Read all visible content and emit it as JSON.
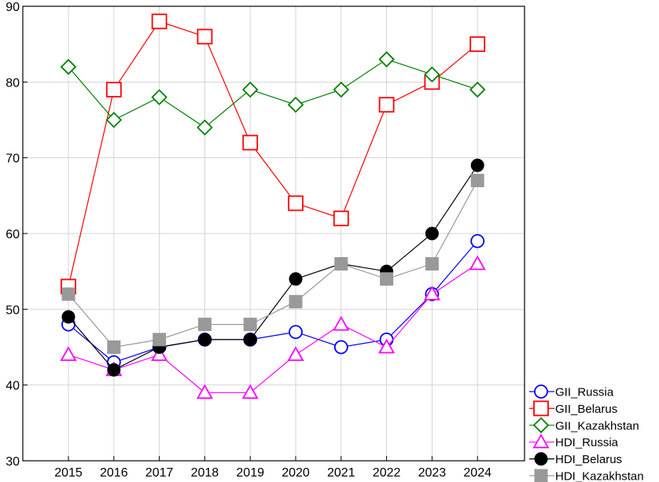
{
  "chart_data": {
    "type": "line",
    "title": "",
    "xlabel": "",
    "ylabel": "",
    "categories": [
      "2015",
      "2016",
      "2017",
      "2018",
      "2019",
      "2020",
      "2021",
      "2022",
      "2023",
      "2024"
    ],
    "ylim": [
      30,
      90
    ],
    "yticks": [
      30,
      40,
      50,
      60,
      70,
      80,
      90
    ],
    "grid": true,
    "legend_position": "bottom-right",
    "series": [
      {
        "name": "GII_Russia",
        "color": "#0000ff",
        "marker": "circle-open",
        "values": [
          48,
          43,
          45,
          46,
          46,
          47,
          45,
          46,
          52,
          59
        ]
      },
      {
        "name": "GII_Belarus",
        "color": "#ff0000",
        "marker": "square-open",
        "values": [
          53,
          79,
          88,
          86,
          72,
          64,
          62,
          77,
          80,
          85
        ]
      },
      {
        "name": "GII_Kazakhstan",
        "color": "#008000",
        "marker": "diamond-open",
        "values": [
          82,
          75,
          78,
          74,
          79,
          77,
          79,
          83,
          81,
          79
        ]
      },
      {
        "name": "HDI_Russia",
        "color": "#ff00ff",
        "marker": "triangle-open",
        "values": [
          44,
          42,
          44,
          39,
          39,
          44,
          48,
          45,
          52,
          56
        ]
      },
      {
        "name": "HDI_Belarus",
        "color": "#000000",
        "marker": "circle-filled",
        "values": [
          49,
          42,
          45,
          46,
          46,
          54,
          56,
          55,
          60,
          69
        ]
      },
      {
        "name": "HDI_Kazakhstan",
        "color": "#999999",
        "marker": "square-filled",
        "values": [
          52,
          45,
          46,
          48,
          48,
          51,
          56,
          54,
          56,
          67
        ]
      }
    ]
  }
}
